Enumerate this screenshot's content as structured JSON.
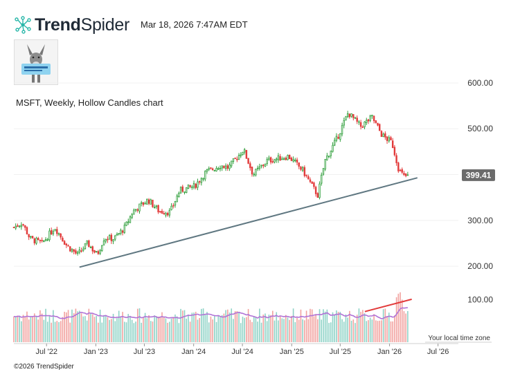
{
  "header": {
    "brand_bold": "Trend",
    "brand_light": "Spider",
    "timestamp": "Mar 18, 2026 7:47AM EDT"
  },
  "chart_title": "MSFT, Weekly, Hollow Candles chart",
  "footer": "©2026 TrendSpider",
  "timezone_label": "Your local time zone",
  "colors": {
    "up": "#2e9e3a",
    "down": "#e23b3b",
    "volume_up": "#8fd3c7",
    "volume_down": "#f2a3a0",
    "volume_ma": "#b072d6",
    "trendline": "#5f7781",
    "price_badge": "#6b6b6b"
  },
  "chart_data": {
    "type": "candlestick",
    "symbol": "MSFT",
    "interval": "Weekly",
    "style": "Hollow Candles",
    "y_axis": {
      "side": "right",
      "ticks": [
        200,
        300,
        400,
        500,
        600
      ],
      "tick_labels": [
        "200.00",
        "300.00",
        "400.00",
        "500.00",
        "600.00"
      ],
      "range": [
        170,
        615
      ]
    },
    "volume_axis": {
      "ticks": [
        100
      ],
      "tick_labels": [
        "100.00"
      ]
    },
    "x_axis": {
      "tick_labels": [
        "Jul '22",
        "Jan '23",
        "Jul '23",
        "Jan '24",
        "Jul '24",
        "Jan '25",
        "Jul '25",
        "Jan '26",
        "Jul '26"
      ],
      "range": [
        "2022-03-01",
        "2026-09-15"
      ]
    },
    "last_price": 399.41,
    "price_path": [
      [
        "2022-03-01",
        285
      ],
      [
        "2022-04-01",
        295
      ],
      [
        "2022-05-01",
        260
      ],
      [
        "2022-06-15",
        250
      ],
      [
        "2022-08-01",
        285
      ],
      [
        "2022-09-15",
        245
      ],
      [
        "2022-10-25",
        225
      ],
      [
        "2022-12-01",
        250
      ],
      [
        "2023-01-06",
        225
      ],
      [
        "2023-02-01",
        262
      ],
      [
        "2023-03-10",
        260
      ],
      [
        "2023-04-20",
        285
      ],
      [
        "2023-05-20",
        320
      ],
      [
        "2023-07-15",
        345
      ],
      [
        "2023-08-25",
        320
      ],
      [
        "2023-10-05",
        318
      ],
      [
        "2023-11-10",
        365
      ],
      [
        "2024-01-05",
        375
      ],
      [
        "2024-02-15",
        405
      ],
      [
        "2024-04-10",
        420
      ],
      [
        "2024-05-10",
        415
      ],
      [
        "2024-07-05",
        455
      ],
      [
        "2024-08-10",
        400
      ],
      [
        "2024-10-01",
        430
      ],
      [
        "2024-12-20",
        440
      ],
      [
        "2025-02-10",
        410
      ],
      [
        "2025-04-08",
        355
      ],
      [
        "2025-05-05",
        430
      ],
      [
        "2025-06-20",
        480
      ],
      [
        "2025-07-31",
        535
      ],
      [
        "2025-09-15",
        505
      ],
      [
        "2025-10-28",
        525
      ],
      [
        "2025-12-05",
        485
      ],
      [
        "2026-01-10",
        470
      ],
      [
        "2026-02-05",
        410
      ],
      [
        "2026-02-25",
        395
      ],
      [
        "2026-03-13",
        399.41
      ]
    ],
    "series": [
      {
        "name": "",
        "type": "volume_ma"
      }
    ],
    "trendlines": [
      {
        "from": [
          "2022-11-01",
          198
        ],
        "to": [
          "2026-04-15",
          393
        ],
        "color": "#5f7781"
      },
      {
        "from": [
          "2025-10-01",
          72
        ],
        "to": [
          "2026-03-25",
          101
        ],
        "color": "#e23b3b",
        "pane": "volume"
      }
    ]
  }
}
